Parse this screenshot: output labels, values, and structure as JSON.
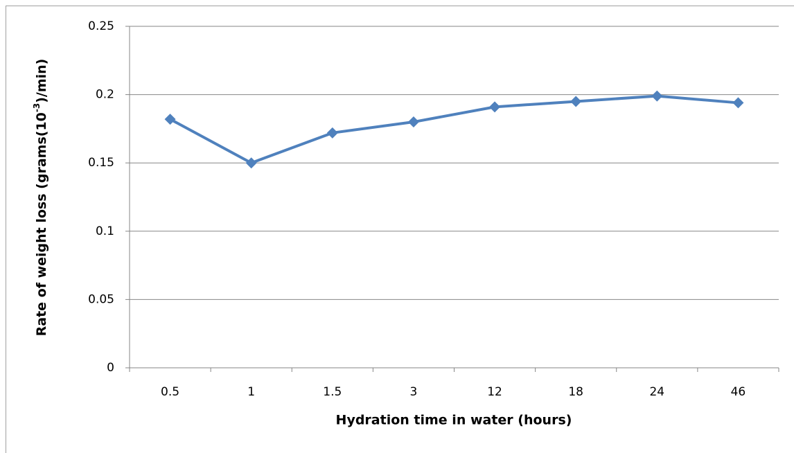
{
  "chart_data": {
    "type": "line",
    "xlabel": "Hydration time in water (hours)",
    "ylabel": [
      "Rate of weight loss (grams(10",
      "-3",
      ")/min)"
    ],
    "categories": [
      "0.5",
      "1",
      "1.5",
      "3",
      "12",
      "18",
      "24",
      "46"
    ],
    "series": [
      {
        "color": "#4f81bd",
        "values": [
          0.182,
          0.15,
          0.172,
          0.18,
          0.191,
          0.195,
          0.199,
          0.194
        ]
      }
    ],
    "ylim": [
      0,
      0.25
    ],
    "yticks": [
      0,
      0.05,
      0.1,
      0.15,
      0.2,
      0.25
    ],
    "grid": true
  }
}
